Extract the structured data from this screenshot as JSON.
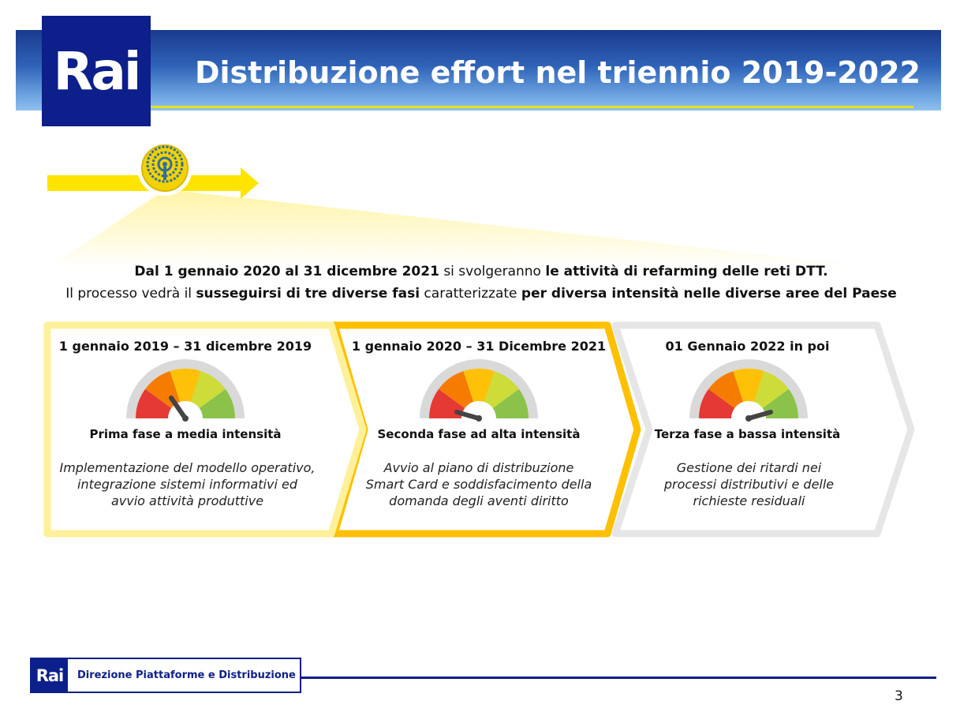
{
  "header": {
    "logo_text": "Rai",
    "title": "Distribuzione effort nel triennio 2019-2022"
  },
  "intro": {
    "line1_bold1": "Dal 1 gennaio 2020 al 31 dicembre 2021",
    "line1_normal": " si svolgeranno ",
    "line1_bold2": "le attività di refarming delle reti DTT.",
    "line2_normal1": "Il processo vedrà il ",
    "line2_bold1": "susseguirsi di tre diverse fasi",
    "line2_normal2": " caratterizzate ",
    "line2_bold2": "per diversa intensità nelle diverse aree del Paese"
  },
  "phases": [
    {
      "title": "1 gennaio 2019 – 31 dicembre 2019",
      "subtitle": "Prima fase a media intensità",
      "description": "Implementazione del modello operativo, integrazione sistemi informativi ed avvio attività produttive",
      "intensity": "media",
      "border_color": "#fff09a"
    },
    {
      "title": "1 gennaio 2020 – 31 Dicembre 2021",
      "subtitle": "Seconda fase ad alta intensità",
      "description": "Avvio al piano di distribuzione Smart Card e soddisfacimento della domanda degli aventi diritto",
      "intensity": "alta",
      "border_color": "#ffc000"
    },
    {
      "title": "01 Gennaio 2022 in poi",
      "subtitle": "Terza fase a bassa intensità",
      "description": "Gestione dei ritardi nei processi distributivi e delle richieste residuali",
      "intensity": "bassa",
      "border_color": "#e6e6e6"
    }
  ],
  "icons": {
    "timeline": "broadcast-antenna-icon",
    "gauge": "speedometer-gauge-icon"
  },
  "footer": {
    "logo_text": "Rai",
    "department": "Direzione Piattaforme e Distribuzione",
    "page_number": "3"
  }
}
